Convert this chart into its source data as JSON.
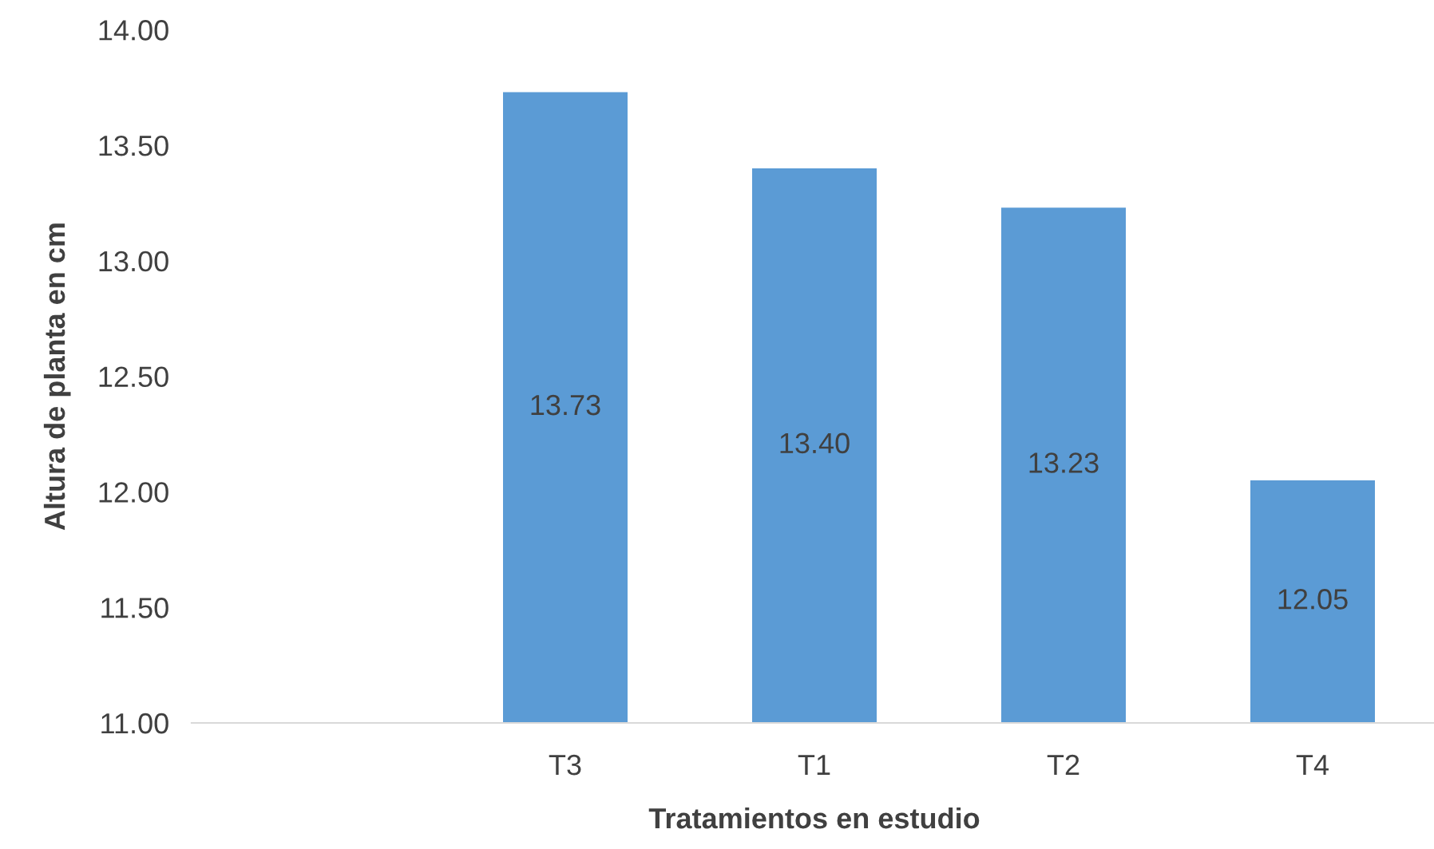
{
  "chart_data": {
    "type": "bar",
    "xlabel": "Tratamientos en estudio",
    "ylabel": "Altura de planta en cm",
    "categories": [
      null,
      "T3",
      "T1",
      "T2",
      "T4"
    ],
    "values": [
      null,
      13.73,
      13.4,
      13.23,
      12.05
    ],
    "value_labels": [
      null,
      "13.73",
      "13.40",
      "13.23",
      "12.05"
    ],
    "color": "#5b9bd5",
    "ylim": [
      11,
      14
    ],
    "yticks": [
      {
        "value": 11,
        "label": "11.00"
      },
      {
        "value": 11.5,
        "label": "11.50"
      },
      {
        "value": 12,
        "label": "12.00"
      },
      {
        "value": 12.5,
        "label": "12.50"
      },
      {
        "value": 13,
        "label": "13.00"
      },
      {
        "value": 13.5,
        "label": "13.50"
      },
      {
        "value": 14,
        "label": "14.00"
      }
    ],
    "grid": false,
    "legend": false
  }
}
